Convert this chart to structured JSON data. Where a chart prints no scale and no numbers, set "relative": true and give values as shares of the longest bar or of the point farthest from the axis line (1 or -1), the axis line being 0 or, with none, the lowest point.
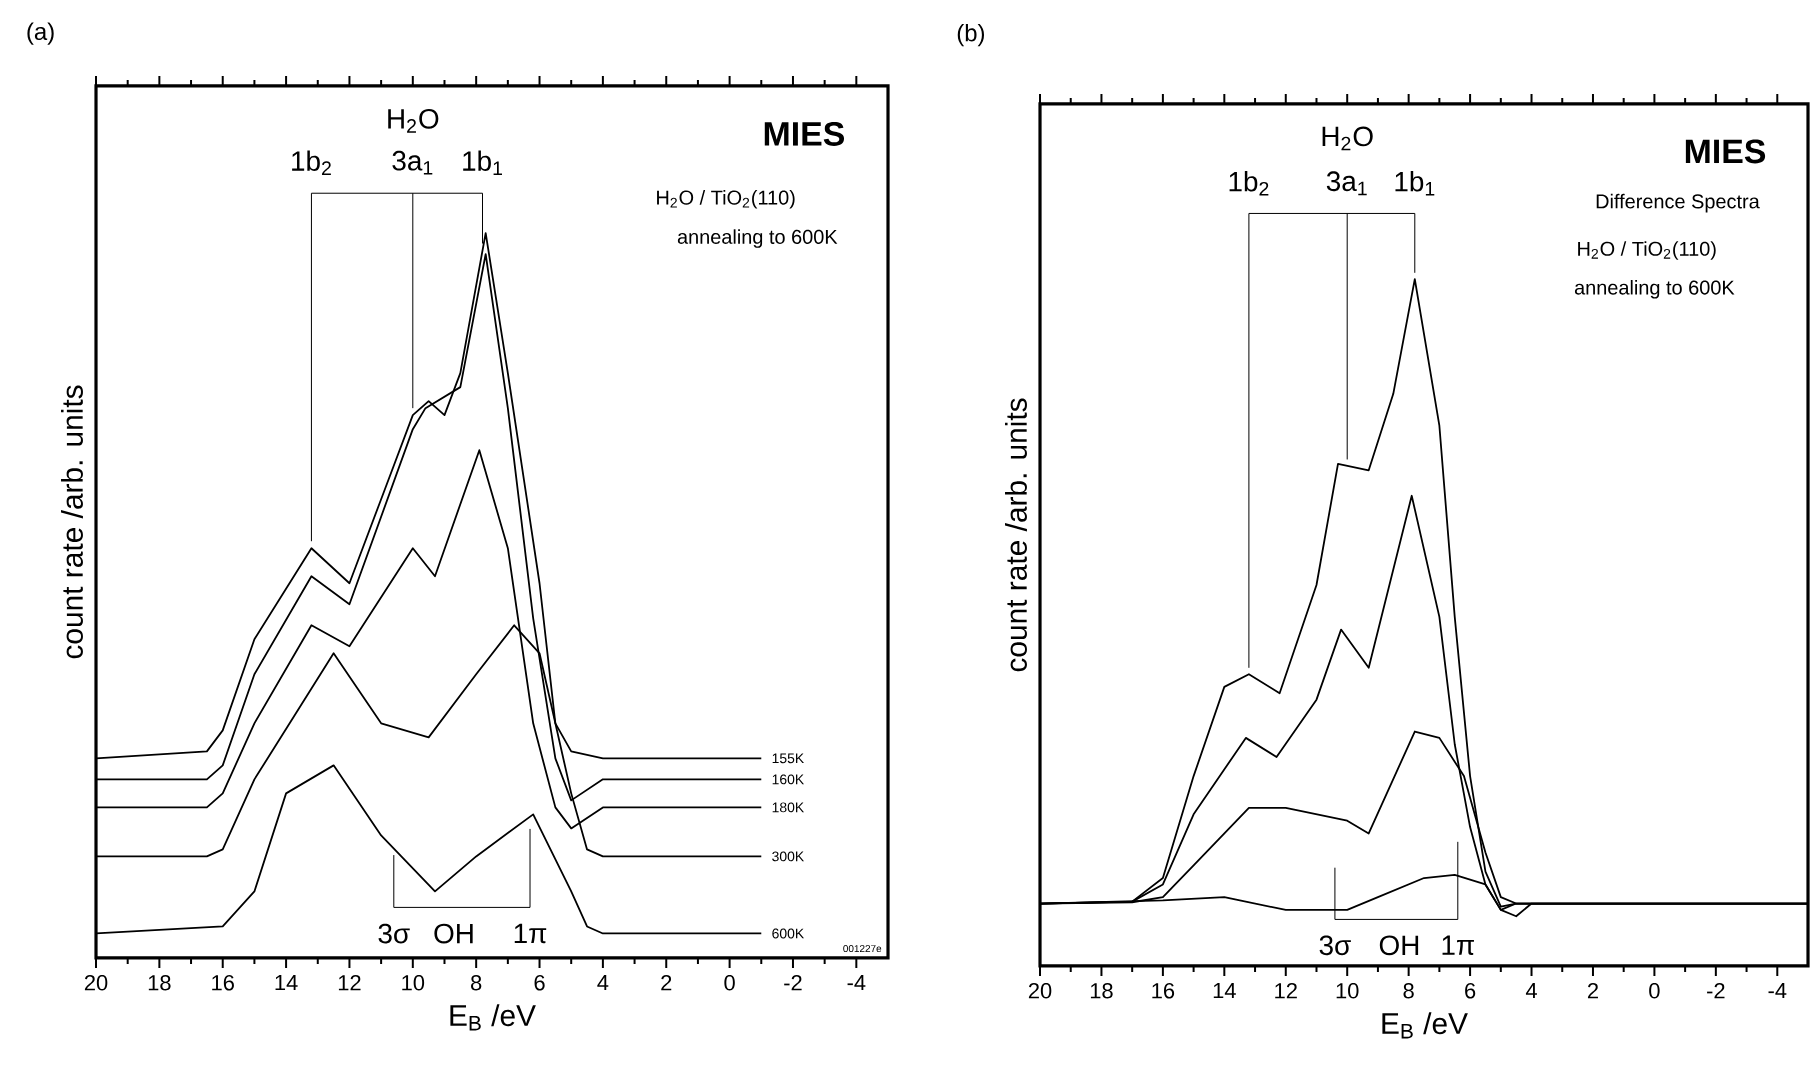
{
  "chart_data": [
    {
      "type": "line",
      "title": "**MIES**",
      "xlabel": "E$_{B}$ /eV",
      "ylabel": "count rate /arb. units",
      "relative": true,
      "xlim": [
        20,
        -5
      ],
      "xticks": [
        20,
        18,
        16,
        14,
        12,
        10,
        8,
        6,
        4,
        2,
        0,
        -2,
        -4
      ],
      "series": [
        {
          "name": "155K",
          "color": "#000000",
          "x": [
            20,
            16.5,
            16,
            15,
            13.2,
            12,
            11,
            10,
            9.5,
            9,
            8.5,
            7.7,
            7,
            6,
            5.5,
            5,
            4,
            -1
          ],
          "values": [
            0.25,
            0.26,
            0.29,
            0.42,
            0.55,
            0.5,
            0.62,
            0.74,
            0.76,
            0.74,
            0.8,
            1.0,
            0.8,
            0.5,
            0.3,
            0.26,
            0.25,
            0.25
          ]
        },
        {
          "name": "160K",
          "color": "#000000",
          "x": [
            20,
            16.5,
            16,
            15,
            13.2,
            12,
            10,
            9.6,
            8.5,
            7.7,
            7,
            6.2,
            5.5,
            5,
            4,
            -1
          ],
          "values": [
            0.22,
            0.22,
            0.24,
            0.37,
            0.51,
            0.47,
            0.72,
            0.75,
            0.78,
            0.97,
            0.75,
            0.45,
            0.25,
            0.19,
            0.22,
            0.22
          ]
        },
        {
          "name": "180K",
          "color": "#000000",
          "x": [
            20,
            16.5,
            16,
            15,
            13.2,
            12,
            10,
            9.3,
            7.9,
            7,
            6.2,
            5.5,
            5,
            4,
            -1
          ],
          "values": [
            0.18,
            0.18,
            0.2,
            0.3,
            0.44,
            0.41,
            0.55,
            0.51,
            0.69,
            0.55,
            0.3,
            0.18,
            0.15,
            0.18,
            0.18
          ]
        },
        {
          "name": "300K",
          "color": "#000000",
          "x": [
            20,
            16.5,
            16,
            15,
            12.5,
            11,
            9.5,
            8,
            6.8,
            6,
            5,
            4.5,
            4,
            -1
          ],
          "values": [
            0.11,
            0.11,
            0.12,
            0.22,
            0.4,
            0.3,
            0.28,
            0.37,
            0.44,
            0.4,
            0.2,
            0.12,
            0.11,
            0.11
          ]
        },
        {
          "name": "600K",
          "color": "#000000",
          "x": [
            20,
            16,
            15,
            14,
            12.5,
            11,
            9.3,
            8,
            6.2,
            5,
            4.5,
            4,
            -1
          ],
          "values": [
            0,
            0.01,
            0.06,
            0.2,
            0.24,
            0.14,
            0.06,
            0.11,
            0.17,
            0.06,
            0.01,
            0,
            0
          ]
        }
      ],
      "annotations": [
        "(a)",
        "H$_{2}$O / TiO$_{2}$(110)",
        "annealing to 600K",
        "001227e",
        "1b$_{2}$",
        "3a$_{1}$",
        "1b$_{1}$",
        "H$_{2}$O",
        "3σ",
        "OH",
        "1π"
      ]
    },
    {
      "type": "line",
      "title": "**MIES**",
      "subtitle": "Difference Spectra",
      "xlabel": "E$_{B}$ /eV",
      "ylabel": "count rate /arb. units",
      "relative": true,
      "xlim": [
        20,
        -5
      ],
      "xticks": [
        20,
        18,
        16,
        14,
        12,
        10,
        8,
        6,
        4,
        2,
        0,
        -2,
        -4
      ],
      "series": [
        {
          "color": "#000000",
          "x": [
            20,
            17,
            16,
            15,
            14,
            13.2,
            12.2,
            11,
            10.3,
            9.3,
            8.5,
            7.8,
            7,
            6.5,
            6,
            5.5,
            5,
            4.5,
            -5
          ],
          "values": [
            0.02,
            0.023,
            0.06,
            0.22,
            0.36,
            0.38,
            0.35,
            0.52,
            0.71,
            0.7,
            0.82,
            1.0,
            0.77,
            0.47,
            0.22,
            0.07,
            0.015,
            0.02,
            0.02
          ]
        },
        {
          "color": "#000000",
          "x": [
            20,
            17,
            16,
            15,
            13.3,
            12.3,
            11,
            10.2,
            9.3,
            7.9,
            7,
            6.5,
            6,
            5.5,
            5,
            4.5,
            -5
          ],
          "values": [
            0.02,
            0.023,
            0.05,
            0.16,
            0.28,
            0.25,
            0.34,
            0.45,
            0.39,
            0.66,
            0.47,
            0.27,
            0.14,
            0.05,
            0.01,
            0.02,
            0.02
          ]
        },
        {
          "color": "#000000",
          "x": [
            20,
            17,
            16,
            15,
            13.2,
            12,
            10,
            9.3,
            7.8,
            7,
            6.2,
            5.5,
            5,
            4.5,
            -5
          ],
          "values": [
            0.02,
            0.022,
            0.03,
            0.08,
            0.17,
            0.17,
            0.15,
            0.13,
            0.29,
            0.28,
            0.22,
            0.1,
            0.03,
            0.02,
            0.02
          ]
        },
        {
          "color": "#000000",
          "x": [
            20,
            16,
            14,
            12,
            10,
            9,
            7.5,
            6.5,
            5.5,
            5,
            4.5,
            4,
            -5
          ],
          "values": [
            0.02,
            0.025,
            0.03,
            0.01,
            0.01,
            0.03,
            0.06,
            0.065,
            0.05,
            0.01,
            0,
            0.02,
            0.02
          ]
        }
      ],
      "annotations": [
        "(b)",
        "H$_{2}$O / TiO$_{2}$(110)",
        "annealing to 600K",
        "1b$_{2}$",
        "3a$_{1}$",
        "1b$_{1}$",
        "H$_{2}$O",
        "3σ",
        "OH",
        "1π"
      ]
    }
  ]
}
